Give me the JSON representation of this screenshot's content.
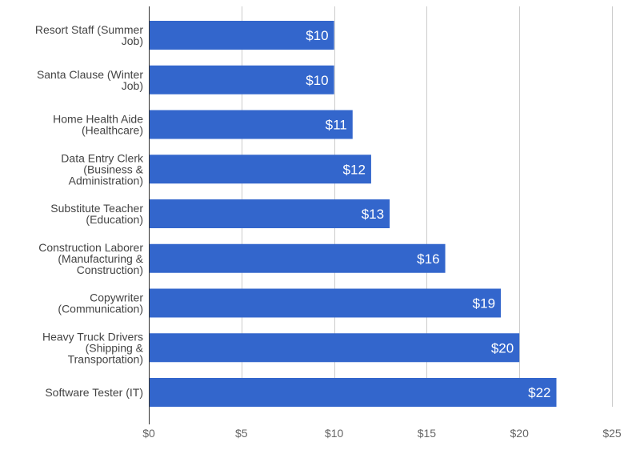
{
  "chart_data": {
    "type": "bar",
    "orientation": "horizontal",
    "categories": [
      "Resort Staff (Summer Job)",
      "Santa Clause (Winter Job)",
      "Home Health Aide (Healthcare)",
      "Data Entry Clerk (Business & Administration)",
      "Substitute Teacher (Education)",
      "Construction Laborer (Manufacturing & Construction)",
      "Copywriter (Communication)",
      "Heavy Truck Drivers (Shipping & Transportation)",
      "Software Tester (IT)"
    ],
    "category_label_lines": [
      [
        "Resort Staff (Summer",
        "Job)"
      ],
      [
        "Santa Clause (Winter",
        "Job)"
      ],
      [
        "Home Health Aide",
        "(Healthcare)"
      ],
      [
        "Data Entry Clerk",
        "(Business &",
        "Administration)"
      ],
      [
        "Substitute Teacher",
        "(Education)"
      ],
      [
        "Construction Laborer",
        "(Manufacturing &",
        "Construction)"
      ],
      [
        "Copywriter",
        "(Communication)"
      ],
      [
        "Heavy Truck Drivers",
        "(Shipping &",
        "Transportation)"
      ],
      [
        "Software Tester (IT)"
      ]
    ],
    "values": [
      10,
      10,
      11,
      12,
      13,
      16,
      19,
      20,
      22
    ],
    "data_labels": [
      "$10",
      "$10",
      "$11",
      "$12",
      "$13",
      "$16",
      "$19",
      "$20",
      "$22"
    ],
    "x_ticks": [
      0,
      5,
      10,
      15,
      20,
      25
    ],
    "x_tick_labels": [
      "$0",
      "$5",
      "$10",
      "$15",
      "$20",
      "$25"
    ],
    "xlim": [
      0,
      25
    ],
    "title": "",
    "xlabel": "",
    "ylabel": "",
    "grid": true,
    "legend": "none",
    "bar_color": "#3366cc",
    "grid_color": "#cccccc",
    "axis_color": "#333333"
  }
}
